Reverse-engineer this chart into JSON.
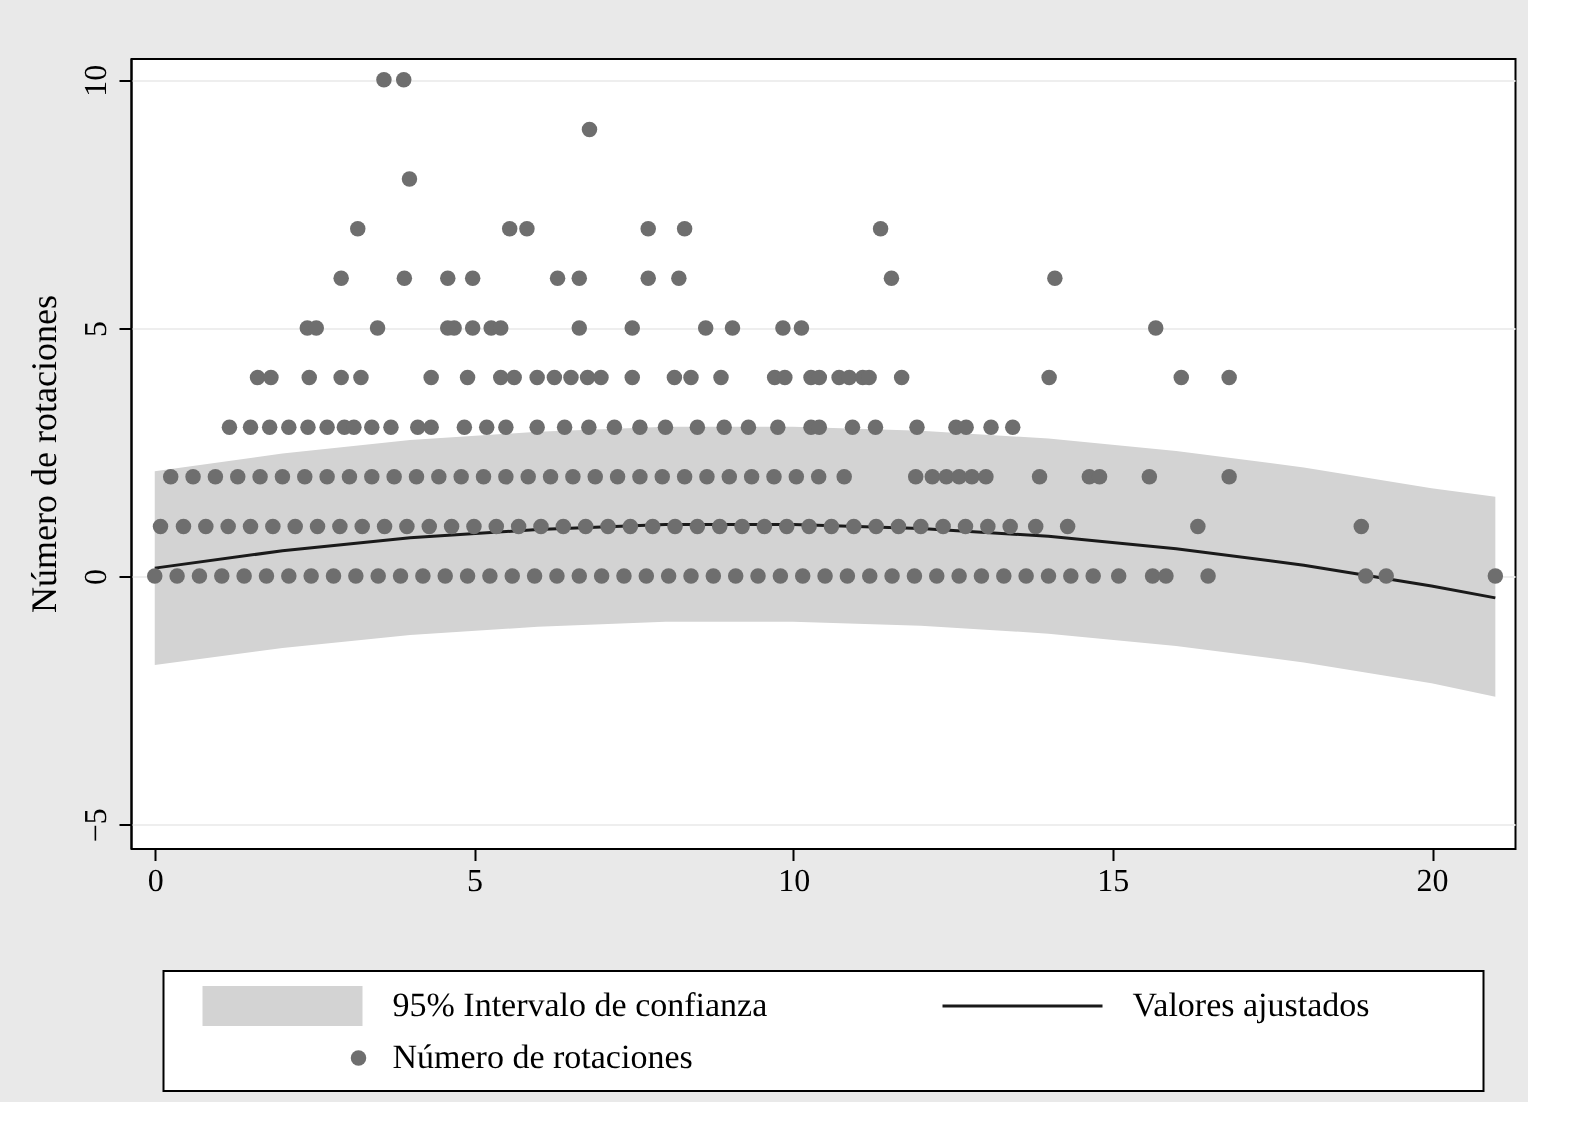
{
  "chart_data": {
    "type": "scatter",
    "ylabel": "Número de rotaciones",
    "xlim": [
      -0.38,
      21.3
    ],
    "ylim": [
      -5.48,
      10.44
    ],
    "xticks": [
      0,
      5,
      10,
      15,
      20
    ],
    "yticks": [
      -5,
      0,
      5,
      10
    ],
    "grid": "y",
    "legend": "bottom",
    "annotations": [
      "95% Intervalo de confianza"
    ],
    "series": [
      {
        "type": "line",
        "name": "Valores ajustados",
        "color": "#1a1a1a",
        "x": [
          0,
          2,
          4,
          6,
          8,
          10,
          12,
          14,
          16,
          18,
          20,
          21
        ],
        "values": [
          0.16,
          0.51,
          0.77,
          0.94,
          1.04,
          1.04,
          0.96,
          0.8,
          0.55,
          0.22,
          -0.2,
          -0.44
        ],
        "lower": [
          -1.79,
          -1.45,
          -1.19,
          -1.02,
          -0.92,
          -0.92,
          -1.0,
          -1.16,
          -1.41,
          -1.74,
          -2.16,
          -2.43
        ],
        "upper": [
          2.11,
          2.47,
          2.74,
          2.91,
          3.01,
          3.01,
          2.93,
          2.77,
          2.52,
          2.19,
          1.77,
          1.6
        ]
      },
      {
        "name": "Número de rotaciones",
        "color": "#6e6e6e",
        "marker": "circle",
        "x": [
          3.59,
          3.9,
          6.81,
          3.99,
          3.18,
          5.56,
          5.83,
          7.73,
          8.3,
          11.37,
          2.92,
          3.91,
          4.59,
          4.98,
          6.31,
          6.65,
          7.73,
          8.21,
          11.54,
          14.1,
          2.39,
          2.53,
          3.49,
          4.59,
          4.69,
          4.98,
          5.27,
          5.42,
          6.65,
          7.48,
          8.63,
          9.05,
          9.84,
          10.13,
          15.68,
          1.61,
          1.82,
          2.42,
          2.92,
          3.23,
          4.33,
          4.9,
          5.42,
          5.63,
          5.99,
          6.26,
          6.52,
          6.78,
          6.99,
          7.48,
          8.14,
          8.4,
          8.87,
          9.71,
          9.87,
          10.28,
          10.41,
          10.72,
          10.88,
          11.09,
          11.19,
          11.7,
          14.01,
          16.08,
          16.83,
          1.17,
          1.5,
          1.8,
          2.1,
          2.4,
          2.7,
          2.97,
          3.12,
          3.4,
          3.7,
          4.12,
          4.33,
          4.85,
          5.2,
          5.5,
          5.99,
          6.42,
          6.8,
          7.2,
          7.6,
          8.0,
          8.5,
          8.92,
          9.3,
          9.76,
          10.28,
          10.41,
          10.93,
          11.29,
          11.94,
          12.55,
          12.71,
          13.1,
          13.44,
          0.25,
          0.6,
          0.95,
          1.3,
          1.65,
          2.0,
          2.35,
          2.7,
          3.05,
          3.4,
          3.75,
          4.1,
          4.45,
          4.8,
          5.15,
          5.5,
          5.85,
          6.2,
          6.55,
          6.9,
          7.25,
          7.6,
          7.95,
          8.3,
          8.65,
          9.0,
          9.35,
          9.7,
          10.05,
          10.4,
          10.8,
          11.92,
          12.18,
          12.4,
          12.6,
          12.8,
          13.02,
          13.86,
          14.64,
          14.8,
          15.58,
          16.83,
          0.09,
          0.45,
          0.8,
          1.15,
          1.5,
          1.85,
          2.2,
          2.55,
          2.9,
          3.25,
          3.6,
          3.95,
          4.3,
          4.65,
          5.0,
          5.35,
          5.7,
          6.05,
          6.4,
          6.75,
          7.1,
          7.45,
          7.8,
          8.15,
          8.5,
          8.85,
          9.2,
          9.55,
          9.9,
          10.25,
          10.6,
          10.95,
          11.3,
          11.65,
          12.0,
          12.35,
          12.7,
          13.05,
          13.4,
          13.8,
          14.3,
          16.34,
          18.9,
          0,
          0.35,
          0.7,
          1.05,
          1.4,
          1.75,
          2.1,
          2.45,
          2.8,
          3.15,
          3.5,
          3.85,
          4.2,
          4.55,
          4.9,
          5.25,
          5.6,
          5.95,
          6.3,
          6.65,
          7.0,
          7.35,
          7.7,
          8.05,
          8.4,
          8.75,
          9.1,
          9.45,
          9.8,
          10.15,
          10.5,
          10.85,
          11.2,
          11.55,
          11.9,
          12.25,
          12.6,
          12.95,
          13.3,
          13.65,
          14.0,
          14.35,
          14.7,
          15.1,
          15.63,
          15.84,
          16.5,
          18.97,
          19.29,
          21.0
        ],
        "values": [
          10,
          10,
          9,
          8,
          7,
          7,
          7,
          7,
          7,
          7,
          6,
          6,
          6,
          6,
          6,
          6,
          6,
          6,
          6,
          6,
          5,
          5,
          5,
          5,
          5,
          5,
          5,
          5,
          5,
          5,
          5,
          5,
          5,
          5,
          5,
          4,
          4,
          4,
          4,
          4,
          4,
          4,
          4,
          4,
          4,
          4,
          4,
          4,
          4,
          4,
          4,
          4,
          4,
          4,
          4,
          4,
          4,
          4,
          4,
          4,
          4,
          4,
          4,
          4,
          4,
          3,
          3,
          3,
          3,
          3,
          3,
          3,
          3,
          3,
          3,
          3,
          3,
          3,
          3,
          3,
          3,
          3,
          3,
          3,
          3,
          3,
          3,
          3,
          3,
          3,
          3,
          3,
          3,
          3,
          3,
          3,
          3,
          3,
          3,
          2,
          2,
          2,
          2,
          2,
          2,
          2,
          2,
          2,
          2,
          2,
          2,
          2,
          2,
          2,
          2,
          2,
          2,
          2,
          2,
          2,
          2,
          2,
          2,
          2,
          2,
          2,
          2,
          2,
          2,
          2,
          2,
          2,
          2,
          2,
          2,
          2,
          2,
          2,
          2,
          2,
          2,
          1,
          1,
          1,
          1,
          1,
          1,
          1,
          1,
          1,
          1,
          1,
          1,
          1,
          1,
          1,
          1,
          1,
          1,
          1,
          1,
          1,
          1,
          1,
          1,
          1,
          1,
          1,
          1,
          1,
          1,
          1,
          1,
          1,
          1,
          1,
          1,
          1,
          1,
          1,
          1,
          1,
          1,
          1,
          0,
          0,
          0,
          0,
          0,
          0,
          0,
          0,
          0,
          0,
          0,
          0,
          0,
          0,
          0,
          0,
          0,
          0,
          0,
          0,
          0,
          0,
          0,
          0,
          0,
          0,
          0,
          0,
          0,
          0,
          0,
          0,
          0,
          0,
          0,
          0,
          0,
          0,
          0,
          0,
          0,
          0,
          0,
          0,
          0,
          0,
          0,
          0,
          0,
          0
        ]
      }
    ]
  }
}
